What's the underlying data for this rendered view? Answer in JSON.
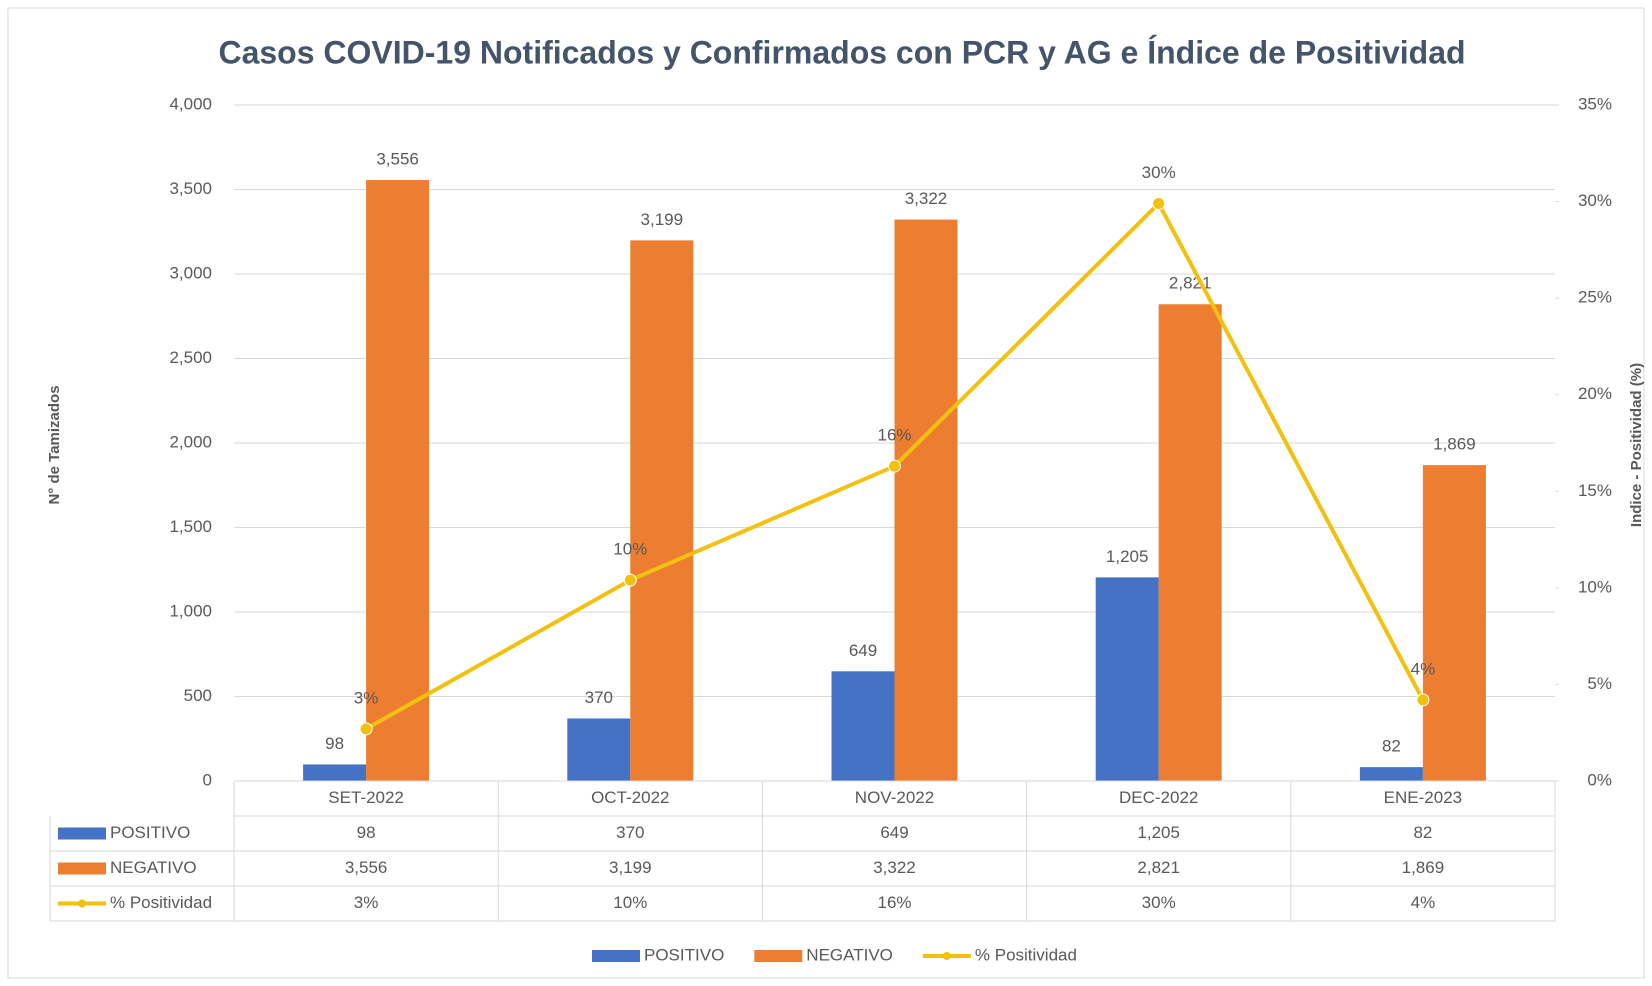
{
  "chart_data": {
    "type": "bar-line-table",
    "title": "Casos COVID-19 Notificados y Confirmados con PCR y AG e Índice de Positividad",
    "y_label": "N° de Tamizados",
    "y2_label": "Indice - Positividad (%)",
    "categories": [
      "SET-2022",
      "OCT-2022",
      "NOV-2022",
      "DEC-2022",
      "ENE-2023"
    ],
    "series": [
      {
        "name": "POSITIVO",
        "type": "bar",
        "color": "#4472c4",
        "values": [
          98,
          370,
          649,
          1205,
          82
        ],
        "value_labels": [
          "98",
          "370",
          "649",
          "1,205",
          "82"
        ]
      },
      {
        "name": "NEGATIVO",
        "type": "bar",
        "color": "#ed7d31",
        "values": [
          3556,
          3199,
          3322,
          2821,
          1869
        ],
        "value_labels": [
          "3,556",
          "3,199",
          "3,322",
          "2,821",
          "1,869"
        ]
      },
      {
        "name": "% Positividad",
        "type": "line",
        "axis": "y2",
        "color": "#f2c10f",
        "values": [
          2.7,
          10.4,
          16.3,
          29.9,
          4.2
        ],
        "value_labels": [
          "3%",
          "10%",
          "16%",
          "30%",
          "4%"
        ]
      }
    ],
    "ylim": [
      0,
      4000
    ],
    "yticks": [
      0,
      500,
      {
        "value": 1000,
        "label": "1,000"
      },
      {
        "value": 1500,
        "label": "1,500"
      },
      {
        "value": 2000,
        "label": "2,000"
      },
      {
        "value": 2500,
        "label": "2,500"
      },
      {
        "value": 3000,
        "label": "3,000"
      },
      {
        "value": 3500,
        "label": "3,500"
      },
      {
        "value": 4000,
        "label": "4,000"
      }
    ],
    "y2lim": [
      0,
      35
    ],
    "y2ticks": [
      {
        "value": 0,
        "label": "0%"
      },
      {
        "value": 5,
        "label": "5%"
      },
      {
        "value": 10,
        "label": "10%"
      },
      {
        "value": 15,
        "label": "15%"
      },
      {
        "value": 20,
        "label": "20%"
      },
      {
        "value": 25,
        "label": "25%"
      },
      {
        "value": 30,
        "label": "30%"
      },
      {
        "value": 35,
        "label": "35%"
      }
    ],
    "grid": true,
    "legend": "bottom"
  }
}
